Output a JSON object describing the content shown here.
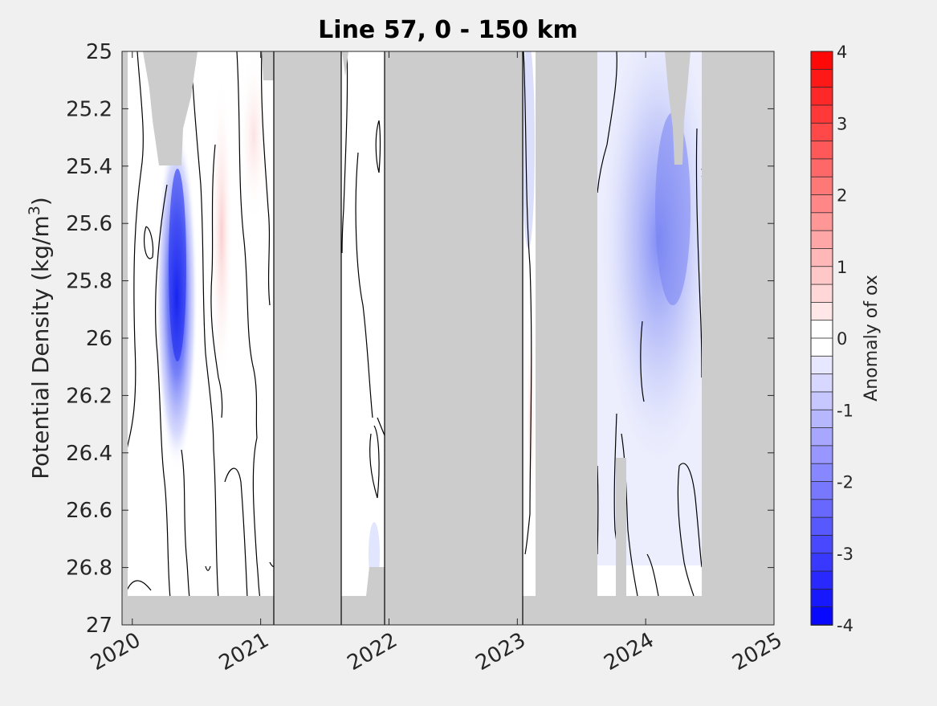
{
  "chart_data": {
    "type": "heatmap",
    "title": "Line 57, 0 - 150 km",
    "xlabel": "",
    "ylabel": "Potential Density (kg/m",
    "ylabel_superscript": "3",
    "ylabel_suffix": ")",
    "x_ticks": [
      "2020",
      "2021",
      "2022",
      "2023",
      "2024",
      "2025"
    ],
    "x_range": [
      2019.92,
      2025.0
    ],
    "y_ticks": [
      "25",
      "25.2",
      "25.4",
      "25.6",
      "25.8",
      "26",
      "26.2",
      "26.4",
      "26.6",
      "26.8",
      "27"
    ],
    "y_range": [
      25.0,
      27.0
    ],
    "y_reversed": true,
    "colorbar": {
      "label": "Anomaly of ox",
      "ticks": [
        "4",
        "3",
        "2",
        "1",
        "0",
        "-1",
        "-2",
        "-3",
        "-4"
      ],
      "range": [
        -4,
        4
      ],
      "levels": 32,
      "colormap": "blue-white-red"
    },
    "colors": {
      "no_data": "#cccccc",
      "background": "#f0f0f0",
      "contour": "#000000",
      "negative": "#0000ff",
      "positive": "#ff0000"
    },
    "no_data_time_ranges": [
      [
        2021.1,
        2021.62
      ],
      [
        2021.96,
        2023.03
      ],
      [
        2023.08,
        2023.58
      ],
      [
        2024.44,
        2025.0
      ]
    ],
    "anomaly_features": [
      {
        "name": "2020 minimum",
        "time": 2020.38,
        "density_range": [
          25.4,
          26.6
        ],
        "min_value": -3.5
      },
      {
        "name": "2020 positive band",
        "time": 2020.72,
        "density_range": [
          25.1,
          26.2
        ],
        "max_value": 0.4
      },
      {
        "name": "2024 negative region",
        "time": 2024.2,
        "density_range": [
          25.0,
          26.6
        ],
        "min_value": -1.8
      }
    ]
  }
}
